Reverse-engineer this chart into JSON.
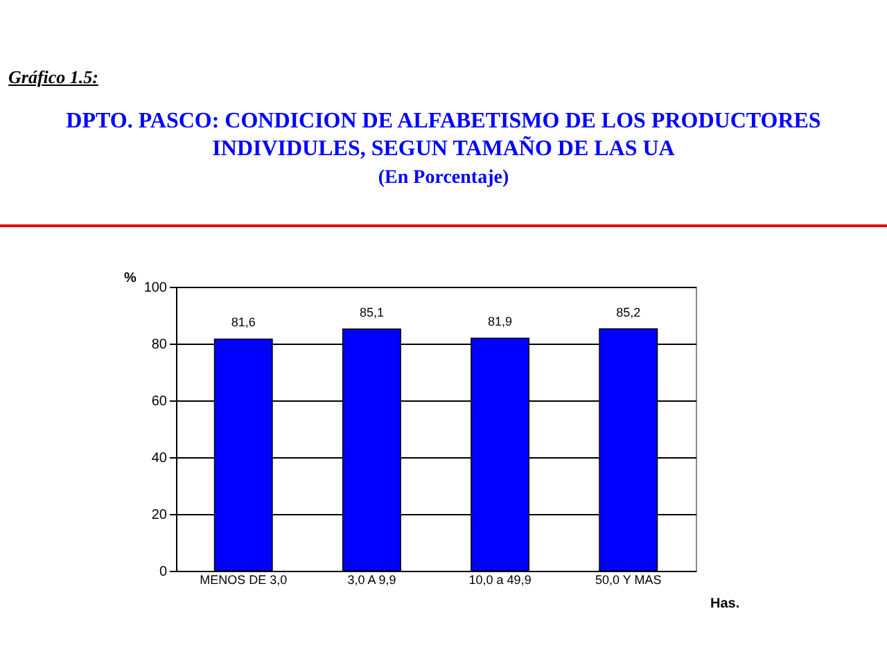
{
  "chart_data": {
    "type": "bar",
    "title": "DPTO. PASCO: CONDICION DE ALFABETISMO DE LOS PRODUCTORES INDIVIDULES, SEGUN TAMAÑO DE LAS UA",
    "subtitle": "(En Porcentaje)",
    "annotations": [
      "Gráfico 1.5:"
    ],
    "categories": [
      "MENOS DE 3,0",
      "3,0 A 9,9",
      "10,0 a 49,9",
      "50,0 Y MAS"
    ],
    "values": [
      81.6,
      85.1,
      81.9,
      85.2
    ],
    "value_labels": [
      "81,6",
      "85,1",
      "81,9",
      "85,2"
    ],
    "color": "#0000ff",
    "ylabel": "%",
    "xlabel": "Has.",
    "ylim": [
      0,
      100
    ],
    "yticks": [
      0,
      20,
      40,
      60,
      80,
      100
    ],
    "grid": "y"
  }
}
